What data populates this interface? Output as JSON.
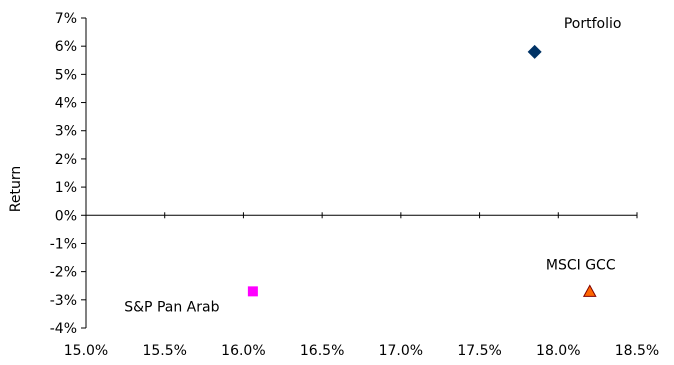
{
  "chart_data": {
    "type": "scatter",
    "title": "",
    "xlabel": "",
    "ylabel": "Return",
    "xlim": [
      0.15,
      0.185
    ],
    "ylim": [
      -0.04,
      0.07
    ],
    "xticks": [
      0.15,
      0.155,
      0.16,
      0.165,
      0.17,
      0.175,
      0.18,
      0.185
    ],
    "xtick_labels": [
      "15.0%",
      "15.5%",
      "16.0%",
      "16.5%",
      "17.0%",
      "17.5%",
      "18.0%",
      "18.5%"
    ],
    "yticks": [
      0.07,
      0.06,
      0.05,
      0.04,
      0.03,
      0.02,
      0.01,
      0,
      -0.01,
      -0.02,
      -0.03,
      -0.04
    ],
    "ytick_labels": [
      "7%",
      "6%",
      "5%",
      "4%",
      "3%",
      "2%",
      "1%",
      "0%",
      "-1%",
      "-2%",
      "-3%",
      "-4%"
    ],
    "grid": false,
    "legend": "none",
    "points": [
      {
        "label": "Portfolio",
        "x": 0.1785,
        "y": 0.058,
        "marker": "diamond",
        "color": "#003366"
      },
      {
        "label": "S&P Pan Arab",
        "x": 0.1606,
        "y": -0.027,
        "marker": "square",
        "color": "#ff00ff"
      },
      {
        "label": "MSCI GCC",
        "x": 0.182,
        "y": -0.027,
        "marker": "triangle",
        "color": "#ff6600",
        "stroke": "#800000"
      }
    ]
  }
}
